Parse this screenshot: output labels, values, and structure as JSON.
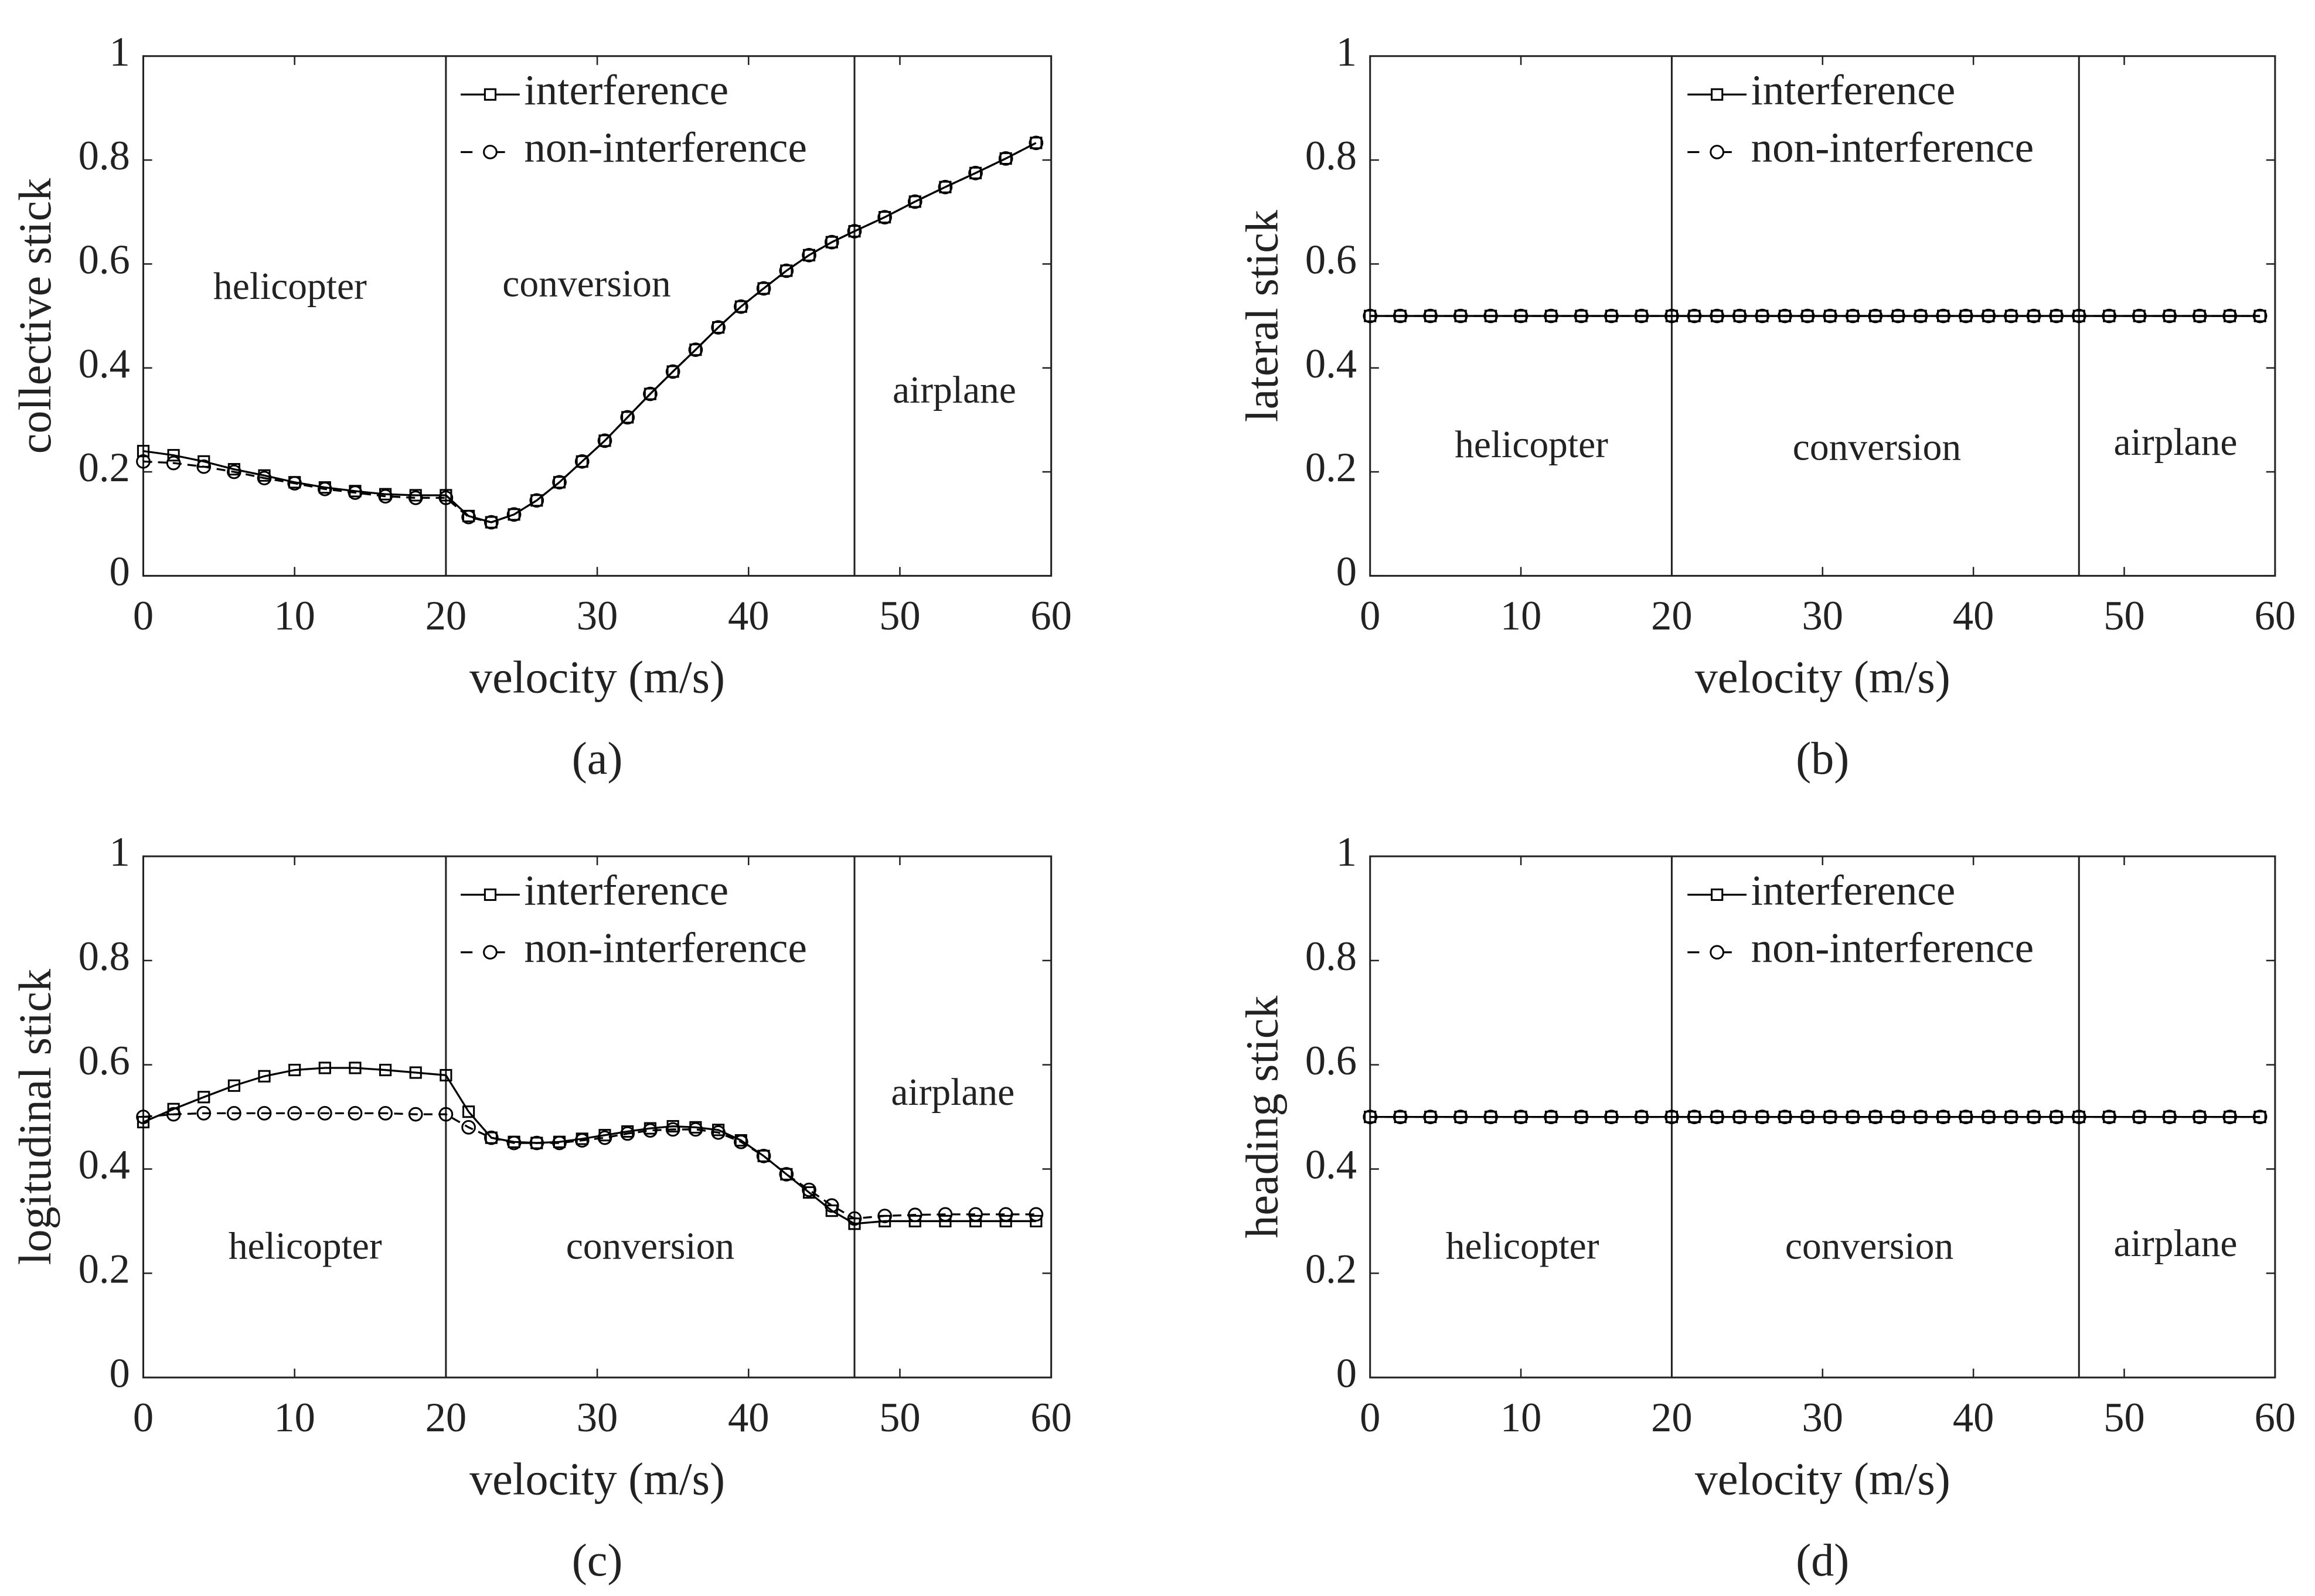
{
  "chart_data": [
    {
      "type": "line",
      "label": "(a)",
      "xlabel": "velocity (m/s)",
      "ylabel": "collective stick",
      "x": [
        0,
        2,
        4,
        6,
        8,
        10,
        12,
        14,
        16,
        18,
        20,
        21.5,
        23,
        24.5,
        26,
        27.5,
        29,
        30.5,
        32,
        33.5,
        35,
        36.5,
        38,
        39.5,
        41,
        42.5,
        44,
        45.5,
        47,
        49,
        51,
        53,
        55,
        57,
        59
      ],
      "xlim": [
        0,
        60
      ],
      "xticks": [
        0,
        10,
        20,
        30,
        40,
        50,
        60
      ],
      "ylim": [
        0,
        1
      ],
      "yticks": [
        0,
        0.2,
        0.4,
        0.6,
        0.8,
        1
      ],
      "vlines": [
        20,
        47
      ],
      "legend": "upper center",
      "annotations": [
        {
          "text": "helicopter",
          "x": 9.7,
          "y": 0.55
        },
        {
          "text": "conversion",
          "x": 29.3,
          "y": 0.555
        },
        {
          "text": "airplane",
          "x": 53.6,
          "y": 0.35
        }
      ],
      "series": [
        {
          "name": "interference",
          "color": "#000000",
          "linestyle": "solid",
          "marker": "square",
          "values": [
            0.24,
            0.232,
            0.22,
            0.205,
            0.193,
            0.18,
            0.17,
            0.163,
            0.157,
            0.155,
            0.155,
            0.115,
            0.103,
            0.118,
            0.145,
            0.18,
            0.22,
            0.26,
            0.305,
            0.35,
            0.393,
            0.435,
            0.478,
            0.518,
            0.553,
            0.587,
            0.617,
            0.642,
            0.663,
            0.69,
            0.72,
            0.748,
            0.775,
            0.803,
            0.833
          ]
        },
        {
          "name": "non-interference",
          "color": "#000000",
          "linestyle": "dashed",
          "marker": "circle",
          "values": [
            0.22,
            0.217,
            0.21,
            0.2,
            0.188,
            0.178,
            0.167,
            0.16,
            0.153,
            0.15,
            0.15,
            0.113,
            0.103,
            0.118,
            0.145,
            0.18,
            0.22,
            0.26,
            0.305,
            0.35,
            0.393,
            0.435,
            0.478,
            0.518,
            0.553,
            0.587,
            0.617,
            0.642,
            0.663,
            0.69,
            0.72,
            0.748,
            0.775,
            0.803,
            0.833
          ]
        }
      ]
    },
    {
      "type": "line",
      "label": "(b)",
      "xlabel": "velocity (m/s)",
      "ylabel": "lateral stick",
      "x": [
        0,
        2,
        4,
        6,
        8,
        10,
        12,
        14,
        16,
        18,
        20,
        21.5,
        23,
        24.5,
        26,
        27.5,
        29,
        30.5,
        32,
        33.5,
        35,
        36.5,
        38,
        39.5,
        41,
        42.5,
        44,
        45.5,
        47,
        49,
        51,
        53,
        55,
        57,
        59
      ],
      "xlim": [
        0,
        60
      ],
      "xticks": [
        0,
        10,
        20,
        30,
        40,
        50,
        60
      ],
      "ylim": [
        0,
        1
      ],
      "yticks": [
        0,
        0.2,
        0.4,
        0.6,
        0.8,
        1
      ],
      "vlines": [
        20,
        47
      ],
      "legend": "upper center",
      "annotations": [
        {
          "text": "helicopter",
          "x": 10.7,
          "y": 0.245
        },
        {
          "text": "conversion",
          "x": 33.6,
          "y": 0.24
        },
        {
          "text": "airplane",
          "x": 53.4,
          "y": 0.25
        }
      ],
      "series": [
        {
          "name": "interference",
          "color": "#000000",
          "linestyle": "solid",
          "marker": "square",
          "values": [
            0.5,
            0.5,
            0.5,
            0.5,
            0.5,
            0.5,
            0.5,
            0.5,
            0.5,
            0.5,
            0.5,
            0.5,
            0.5,
            0.5,
            0.5,
            0.5,
            0.5,
            0.5,
            0.5,
            0.5,
            0.5,
            0.5,
            0.5,
            0.5,
            0.5,
            0.5,
            0.5,
            0.5,
            0.5,
            0.5,
            0.5,
            0.5,
            0.5,
            0.5,
            0.5
          ]
        },
        {
          "name": "non-interference",
          "color": "#000000",
          "linestyle": "dashed",
          "marker": "circle",
          "values": [
            0.5,
            0.5,
            0.5,
            0.5,
            0.5,
            0.5,
            0.5,
            0.5,
            0.5,
            0.5,
            0.5,
            0.5,
            0.5,
            0.5,
            0.5,
            0.5,
            0.5,
            0.5,
            0.5,
            0.5,
            0.5,
            0.5,
            0.5,
            0.5,
            0.5,
            0.5,
            0.5,
            0.5,
            0.5,
            0.5,
            0.5,
            0.5,
            0.5,
            0.5,
            0.5
          ]
        }
      ]
    },
    {
      "type": "line",
      "label": "(c)",
      "xlabel": "velocity (m/s)",
      "ylabel": "logitudinal stick",
      "x": [
        0,
        2,
        4,
        6,
        8,
        10,
        12,
        14,
        16,
        18,
        20,
        21.5,
        23,
        24.5,
        26,
        27.5,
        29,
        30.5,
        32,
        33.5,
        35,
        36.5,
        38,
        39.5,
        41,
        42.5,
        44,
        45.5,
        47,
        49,
        51,
        53,
        55,
        57,
        59
      ],
      "xlim": [
        0,
        60
      ],
      "xticks": [
        0,
        10,
        20,
        30,
        40,
        50,
        60
      ],
      "ylim": [
        0,
        1
      ],
      "yticks": [
        0,
        0.2,
        0.4,
        0.6,
        0.8,
        1
      ],
      "vlines": [
        20,
        47
      ],
      "legend": "upper center",
      "annotations": [
        {
          "text": "helicopter",
          "x": 10.7,
          "y": 0.245
        },
        {
          "text": "conversion",
          "x": 33.5,
          "y": 0.245
        },
        {
          "text": "airplane",
          "x": 53.5,
          "y": 0.54
        }
      ],
      "series": [
        {
          "name": "interference",
          "color": "#000000",
          "linestyle": "solid",
          "marker": "square",
          "values": [
            0.49,
            0.515,
            0.538,
            0.56,
            0.578,
            0.59,
            0.594,
            0.594,
            0.59,
            0.585,
            0.58,
            0.51,
            0.46,
            0.452,
            0.45,
            0.452,
            0.458,
            0.465,
            0.472,
            0.478,
            0.482,
            0.48,
            0.475,
            0.455,
            0.425,
            0.39,
            0.355,
            0.32,
            0.295,
            0.3,
            0.3,
            0.3,
            0.3,
            0.3,
            0.3
          ]
        },
        {
          "name": "non-interference",
          "color": "#000000",
          "linestyle": "dashed",
          "marker": "circle",
          "values": [
            0.5,
            0.505,
            0.507,
            0.507,
            0.507,
            0.507,
            0.507,
            0.507,
            0.507,
            0.505,
            0.505,
            0.48,
            0.46,
            0.45,
            0.45,
            0.45,
            0.455,
            0.46,
            0.468,
            0.474,
            0.476,
            0.476,
            0.47,
            0.452,
            0.425,
            0.39,
            0.36,
            0.33,
            0.305,
            0.31,
            0.312,
            0.313,
            0.313,
            0.313,
            0.313
          ]
        }
      ]
    },
    {
      "type": "line",
      "label": "(d)",
      "xlabel": "velocity (m/s)",
      "ylabel": "heading stick",
      "x": [
        0,
        2,
        4,
        6,
        8,
        10,
        12,
        14,
        16,
        18,
        20,
        21.5,
        23,
        24.5,
        26,
        27.5,
        29,
        30.5,
        32,
        33.5,
        35,
        36.5,
        38,
        39.5,
        41,
        42.5,
        44,
        45.5,
        47,
        49,
        51,
        53,
        55,
        57,
        59
      ],
      "xlim": [
        0,
        60
      ],
      "xticks": [
        0,
        10,
        20,
        30,
        40,
        50,
        60
      ],
      "ylim": [
        0,
        1
      ],
      "yticks": [
        0,
        0.2,
        0.4,
        0.6,
        0.8,
        1
      ],
      "vlines": [
        20,
        47
      ],
      "legend": "upper center",
      "annotations": [
        {
          "text": "helicopter",
          "x": 10.1,
          "y": 0.245
        },
        {
          "text": "conversion",
          "x": 33.1,
          "y": 0.245
        },
        {
          "text": "airplane",
          "x": 53.4,
          "y": 0.25
        }
      ],
      "series": [
        {
          "name": "interference",
          "color": "#000000",
          "linestyle": "solid",
          "marker": "square",
          "values": [
            0.5,
            0.5,
            0.5,
            0.5,
            0.5,
            0.5,
            0.5,
            0.5,
            0.5,
            0.5,
            0.5,
            0.5,
            0.5,
            0.5,
            0.5,
            0.5,
            0.5,
            0.5,
            0.5,
            0.5,
            0.5,
            0.5,
            0.5,
            0.5,
            0.5,
            0.5,
            0.5,
            0.5,
            0.5,
            0.5,
            0.5,
            0.5,
            0.5,
            0.5,
            0.5
          ]
        },
        {
          "name": "non-interference",
          "color": "#000000",
          "linestyle": "dashed",
          "marker": "circle",
          "values": [
            0.5,
            0.5,
            0.5,
            0.5,
            0.5,
            0.5,
            0.5,
            0.5,
            0.5,
            0.5,
            0.5,
            0.5,
            0.5,
            0.5,
            0.5,
            0.5,
            0.5,
            0.5,
            0.5,
            0.5,
            0.5,
            0.5,
            0.5,
            0.5,
            0.5,
            0.5,
            0.5,
            0.5,
            0.5,
            0.5,
            0.5,
            0.5,
            0.5,
            0.5,
            0.5
          ]
        }
      ]
    }
  ]
}
